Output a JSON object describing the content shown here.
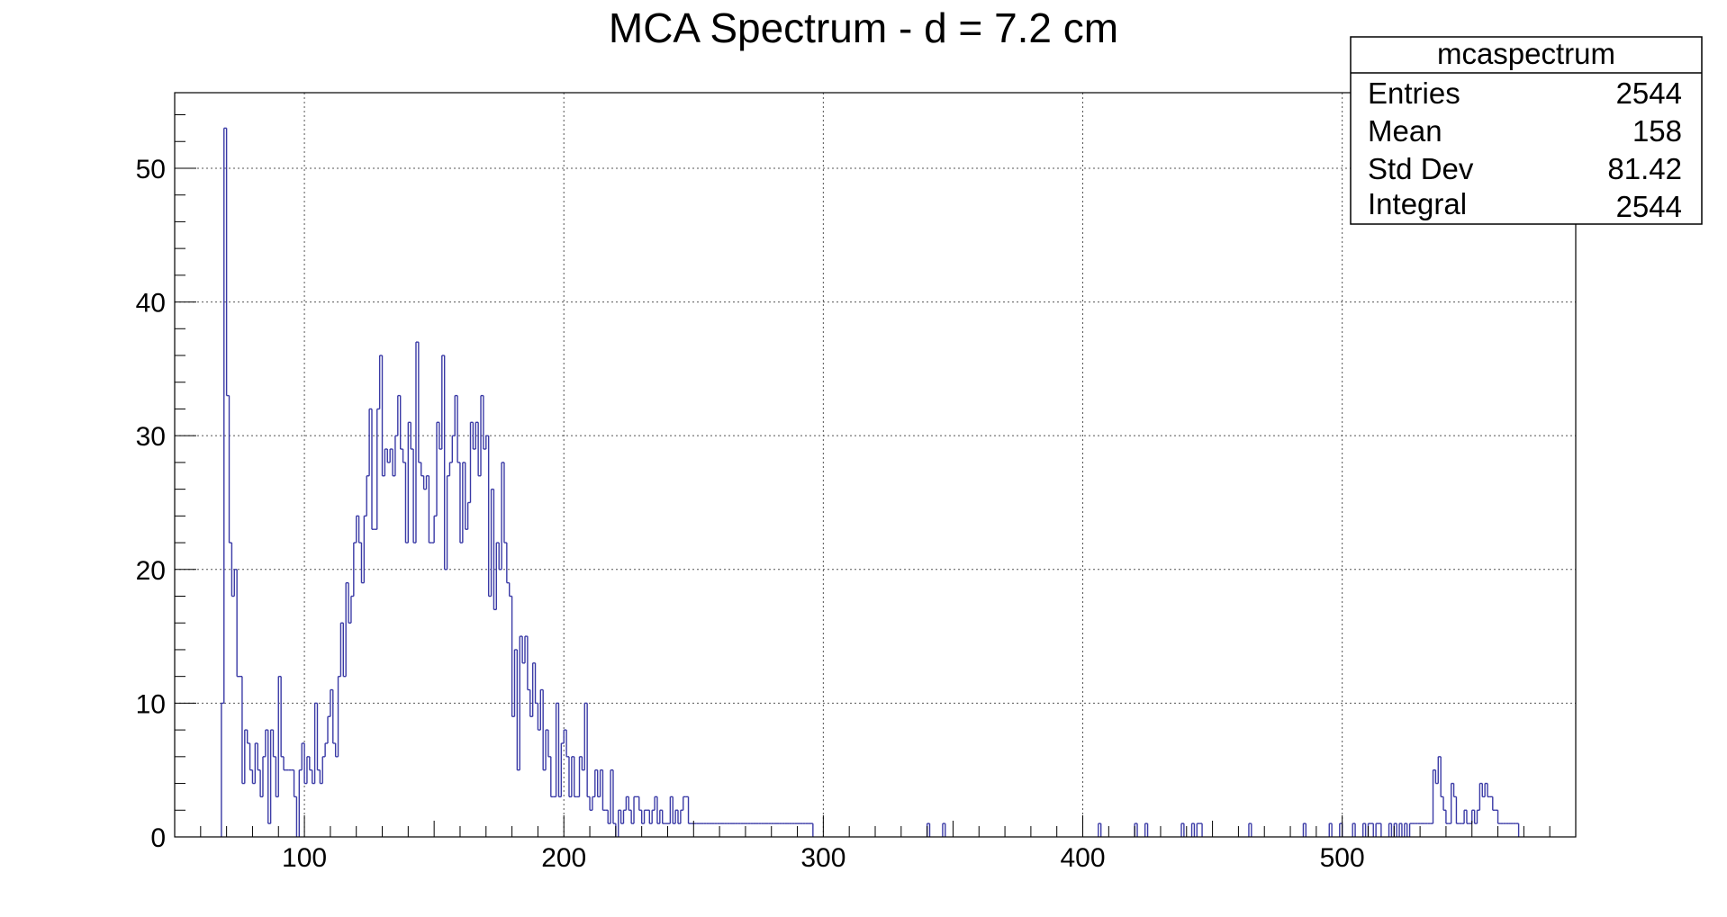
{
  "chart_data": {
    "type": "histogram",
    "title": "MCA Spectrum - d = 7.2 cm",
    "xlabel": "",
    "ylabel": "",
    "xlim": [
      50,
      590
    ],
    "ylim": [
      0,
      55.65
    ],
    "grid": true,
    "bin_width": 1,
    "line_color": "#3a3aa6",
    "x_ticks": [
      100,
      200,
      300,
      400,
      500
    ],
    "y_ticks": [
      0,
      10,
      20,
      30,
      40,
      50
    ],
    "bins": [
      [
        68,
        10
      ],
      [
        69,
        53
      ],
      [
        70,
        33
      ],
      [
        71,
        22
      ],
      [
        72,
        18
      ],
      [
        73,
        20
      ],
      [
        74,
        12
      ],
      [
        75,
        12
      ],
      [
        76,
        4
      ],
      [
        77,
        8
      ],
      [
        78,
        7
      ],
      [
        79,
        5
      ],
      [
        80,
        4
      ],
      [
        81,
        7
      ],
      [
        82,
        5
      ],
      [
        83,
        3
      ],
      [
        84,
        6
      ],
      [
        85,
        8
      ],
      [
        86,
        1
      ],
      [
        87,
        8
      ],
      [
        88,
        6
      ],
      [
        89,
        3
      ],
      [
        90,
        12
      ],
      [
        91,
        6
      ],
      [
        92,
        5
      ],
      [
        93,
        5
      ],
      [
        94,
        5
      ],
      [
        95,
        5
      ],
      [
        96,
        3
      ],
      [
        97,
        0
      ],
      [
        98,
        5
      ],
      [
        99,
        7
      ],
      [
        100,
        4
      ],
      [
        101,
        6
      ],
      [
        102,
        5
      ],
      [
        103,
        4
      ],
      [
        104,
        10
      ],
      [
        105,
        5
      ],
      [
        106,
        4
      ],
      [
        107,
        6
      ],
      [
        108,
        7
      ],
      [
        109,
        9
      ],
      [
        110,
        11
      ],
      [
        111,
        7
      ],
      [
        112,
        6
      ],
      [
        113,
        12
      ],
      [
        114,
        16
      ],
      [
        115,
        12
      ],
      [
        116,
        19
      ],
      [
        117,
        16
      ],
      [
        118,
        18
      ],
      [
        119,
        22
      ],
      [
        120,
        24
      ],
      [
        121,
        22
      ],
      [
        122,
        19
      ],
      [
        123,
        24
      ],
      [
        124,
        27
      ],
      [
        125,
        32
      ],
      [
        126,
        23
      ],
      [
        127,
        23
      ],
      [
        128,
        32
      ],
      [
        129,
        36
      ],
      [
        130,
        27
      ],
      [
        131,
        29
      ],
      [
        132,
        28
      ],
      [
        133,
        29
      ],
      [
        134,
        27
      ],
      [
        135,
        30
      ],
      [
        136,
        33
      ],
      [
        137,
        29
      ],
      [
        138,
        28
      ],
      [
        139,
        22
      ],
      [
        140,
        31
      ],
      [
        141,
        29
      ],
      [
        142,
        22
      ],
      [
        143,
        37
      ],
      [
        144,
        28
      ],
      [
        145,
        27
      ],
      [
        146,
        26
      ],
      [
        147,
        27
      ],
      [
        148,
        22
      ],
      [
        149,
        22
      ],
      [
        150,
        24
      ],
      [
        151,
        31
      ],
      [
        152,
        29
      ],
      [
        153,
        36
      ],
      [
        154,
        20
      ],
      [
        155,
        27
      ],
      [
        156,
        28
      ],
      [
        157,
        30
      ],
      [
        158,
        33
      ],
      [
        159,
        28
      ],
      [
        160,
        22
      ],
      [
        161,
        28
      ],
      [
        162,
        23
      ],
      [
        163,
        25
      ],
      [
        164,
        31
      ],
      [
        165,
        29
      ],
      [
        166,
        31
      ],
      [
        167,
        27
      ],
      [
        168,
        33
      ],
      [
        169,
        29
      ],
      [
        170,
        30
      ],
      [
        171,
        18
      ],
      [
        172,
        26
      ],
      [
        173,
        17
      ],
      [
        174,
        22
      ],
      [
        175,
        20
      ],
      [
        176,
        28
      ],
      [
        177,
        22
      ],
      [
        178,
        19
      ],
      [
        179,
        18
      ],
      [
        180,
        9
      ],
      [
        181,
        14
      ],
      [
        182,
        5
      ],
      [
        183,
        15
      ],
      [
        184,
        13
      ],
      [
        185,
        15
      ],
      [
        186,
        11
      ],
      [
        187,
        9
      ],
      [
        188,
        13
      ],
      [
        189,
        10
      ],
      [
        190,
        8
      ],
      [
        191,
        11
      ],
      [
        192,
        5
      ],
      [
        193,
        8
      ],
      [
        194,
        6
      ],
      [
        195,
        3
      ],
      [
        196,
        3
      ],
      [
        197,
        10
      ],
      [
        198,
        3
      ],
      [
        199,
        7
      ],
      [
        200,
        8
      ],
      [
        201,
        6
      ],
      [
        202,
        3
      ],
      [
        203,
        6
      ],
      [
        204,
        3
      ],
      [
        205,
        3
      ],
      [
        206,
        6
      ],
      [
        207,
        5
      ],
      [
        208,
        10
      ],
      [
        209,
        3
      ],
      [
        210,
        2
      ],
      [
        211,
        3
      ],
      [
        212,
        5
      ],
      [
        213,
        3
      ],
      [
        214,
        5
      ],
      [
        215,
        2
      ],
      [
        216,
        2
      ],
      [
        217,
        1
      ],
      [
        218,
        5
      ],
      [
        219,
        1
      ],
      [
        220,
        0
      ],
      [
        221,
        2
      ],
      [
        222,
        1
      ],
      [
        223,
        2
      ],
      [
        224,
        3
      ],
      [
        225,
        2
      ],
      [
        226,
        1
      ],
      [
        227,
        3
      ],
      [
        228,
        3
      ],
      [
        229,
        2
      ],
      [
        230,
        1
      ],
      [
        231,
        2
      ],
      [
        232,
        2
      ],
      [
        233,
        1
      ],
      [
        234,
        2
      ],
      [
        235,
        3
      ],
      [
        236,
        1
      ],
      [
        237,
        2
      ],
      [
        238,
        1
      ],
      [
        239,
        1
      ],
      [
        240,
        1
      ],
      [
        241,
        3
      ],
      [
        242,
        1
      ],
      [
        243,
        2
      ],
      [
        244,
        1
      ],
      [
        245,
        2
      ],
      [
        246,
        3
      ],
      [
        247,
        3
      ],
      [
        248,
        1
      ],
      [
        249,
        1
      ],
      [
        250,
        1
      ],
      [
        251,
        1
      ],
      [
        252,
        1
      ],
      [
        253,
        1
      ],
      [
        254,
        1
      ],
      [
        255,
        1
      ],
      [
        256,
        1
      ],
      [
        257,
        1
      ],
      [
        258,
        1
      ],
      [
        259,
        1
      ],
      [
        260,
        1
      ],
      [
        261,
        1
      ],
      [
        262,
        1
      ],
      [
        263,
        1
      ],
      [
        264,
        1
      ],
      [
        265,
        1
      ],
      [
        266,
        1
      ],
      [
        267,
        1
      ],
      [
        268,
        1
      ],
      [
        269,
        1
      ],
      [
        270,
        1
      ],
      [
        271,
        1
      ],
      [
        272,
        1
      ],
      [
        273,
        1
      ],
      [
        274,
        1
      ],
      [
        275,
        1
      ],
      [
        276,
        1
      ],
      [
        277,
        1
      ],
      [
        278,
        1
      ],
      [
        279,
        1
      ],
      [
        280,
        1
      ],
      [
        281,
        1
      ],
      [
        282,
        1
      ],
      [
        283,
        1
      ],
      [
        284,
        1
      ],
      [
        285,
        1
      ],
      [
        286,
        1
      ],
      [
        287,
        1
      ],
      [
        288,
        1
      ],
      [
        289,
        1
      ],
      [
        290,
        1
      ],
      [
        291,
        1
      ],
      [
        292,
        1
      ],
      [
        293,
        1
      ],
      [
        294,
        1
      ],
      [
        295,
        1
      ],
      [
        340,
        1
      ],
      [
        346,
        1
      ],
      [
        406,
        1
      ],
      [
        420,
        1
      ],
      [
        424,
        1
      ],
      [
        438,
        1
      ],
      [
        442,
        1
      ],
      [
        444,
        1
      ],
      [
        445,
        1
      ],
      [
        464,
        1
      ],
      [
        485,
        1
      ],
      [
        495,
        1
      ],
      [
        499,
        1
      ],
      [
        504,
        1
      ],
      [
        508,
        1
      ],
      [
        510,
        1
      ],
      [
        511,
        1
      ],
      [
        513,
        1
      ],
      [
        514,
        1
      ],
      [
        518,
        1
      ],
      [
        520,
        1
      ],
      [
        522,
        1
      ],
      [
        524,
        1
      ],
      [
        526,
        1
      ],
      [
        527,
        1
      ],
      [
        528,
        1
      ],
      [
        529,
        1
      ],
      [
        530,
        1
      ],
      [
        531,
        1
      ],
      [
        532,
        1
      ],
      [
        533,
        1
      ],
      [
        534,
        1
      ],
      [
        535,
        5
      ],
      [
        536,
        4
      ],
      [
        537,
        6
      ],
      [
        538,
        3
      ],
      [
        539,
        2
      ],
      [
        540,
        1
      ],
      [
        541,
        1
      ],
      [
        542,
        4
      ],
      [
        543,
        3
      ],
      [
        544,
        1
      ],
      [
        545,
        1
      ],
      [
        546,
        1
      ],
      [
        547,
        2
      ],
      [
        548,
        1
      ],
      [
        549,
        1
      ],
      [
        550,
        2
      ],
      [
        551,
        1
      ],
      [
        552,
        2
      ],
      [
        553,
        4
      ],
      [
        554,
        3
      ],
      [
        555,
        4
      ],
      [
        556,
        3
      ],
      [
        557,
        3
      ],
      [
        558,
        2
      ],
      [
        559,
        2
      ],
      [
        560,
        1
      ],
      [
        561,
        1
      ],
      [
        562,
        1
      ],
      [
        563,
        1
      ],
      [
        564,
        1
      ],
      [
        565,
        1
      ],
      [
        566,
        1
      ],
      [
        567,
        1
      ]
    ],
    "stats_box": {
      "title": "mcaspectrum",
      "rows": [
        {
          "label": "Entries",
          "value": "2544"
        },
        {
          "label": "Mean",
          "value": "158"
        },
        {
          "label": "Std Dev",
          "value": "81.42"
        },
        {
          "label": "Integral",
          "value": "2544"
        }
      ]
    }
  }
}
